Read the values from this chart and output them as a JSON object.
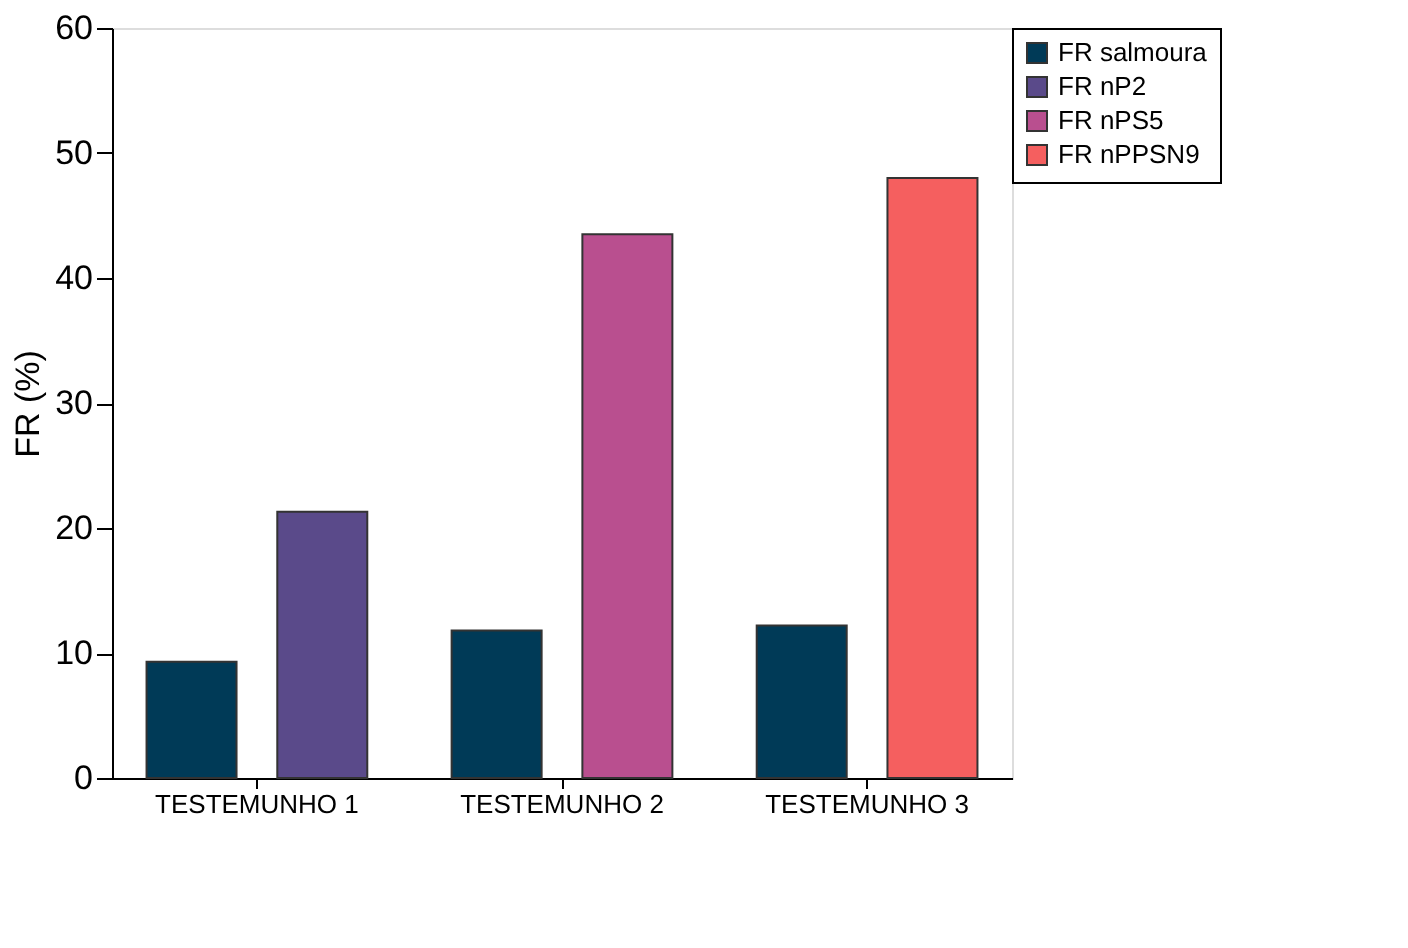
{
  "chart_data": {
    "type": "bar",
    "ylabel": "FR (%)",
    "categories": [
      "TESTEMUNHO 1",
      "TESTEMUNHO 2",
      "TESTEMUNHO 3"
    ],
    "series": [
      {
        "name": "FR salmoura",
        "color": "#003a57",
        "values": [
          9.3,
          11.8,
          12.2
        ]
      },
      {
        "name": "FR nP2",
        "color": "#5a4a8a",
        "values": [
          21.3,
          null,
          null
        ]
      },
      {
        "name": "FR nPS5",
        "color": "#b94f8f",
        "values": [
          null,
          43.5,
          null
        ]
      },
      {
        "name": "FR nPPSN9",
        "color": "#f55f5f",
        "values": [
          null,
          null,
          48
        ]
      }
    ],
    "ylim": [
      0,
      60
    ],
    "yticks": [
      0,
      10,
      20,
      30,
      40,
      50,
      60
    ],
    "grid": false,
    "legend": "top right"
  }
}
